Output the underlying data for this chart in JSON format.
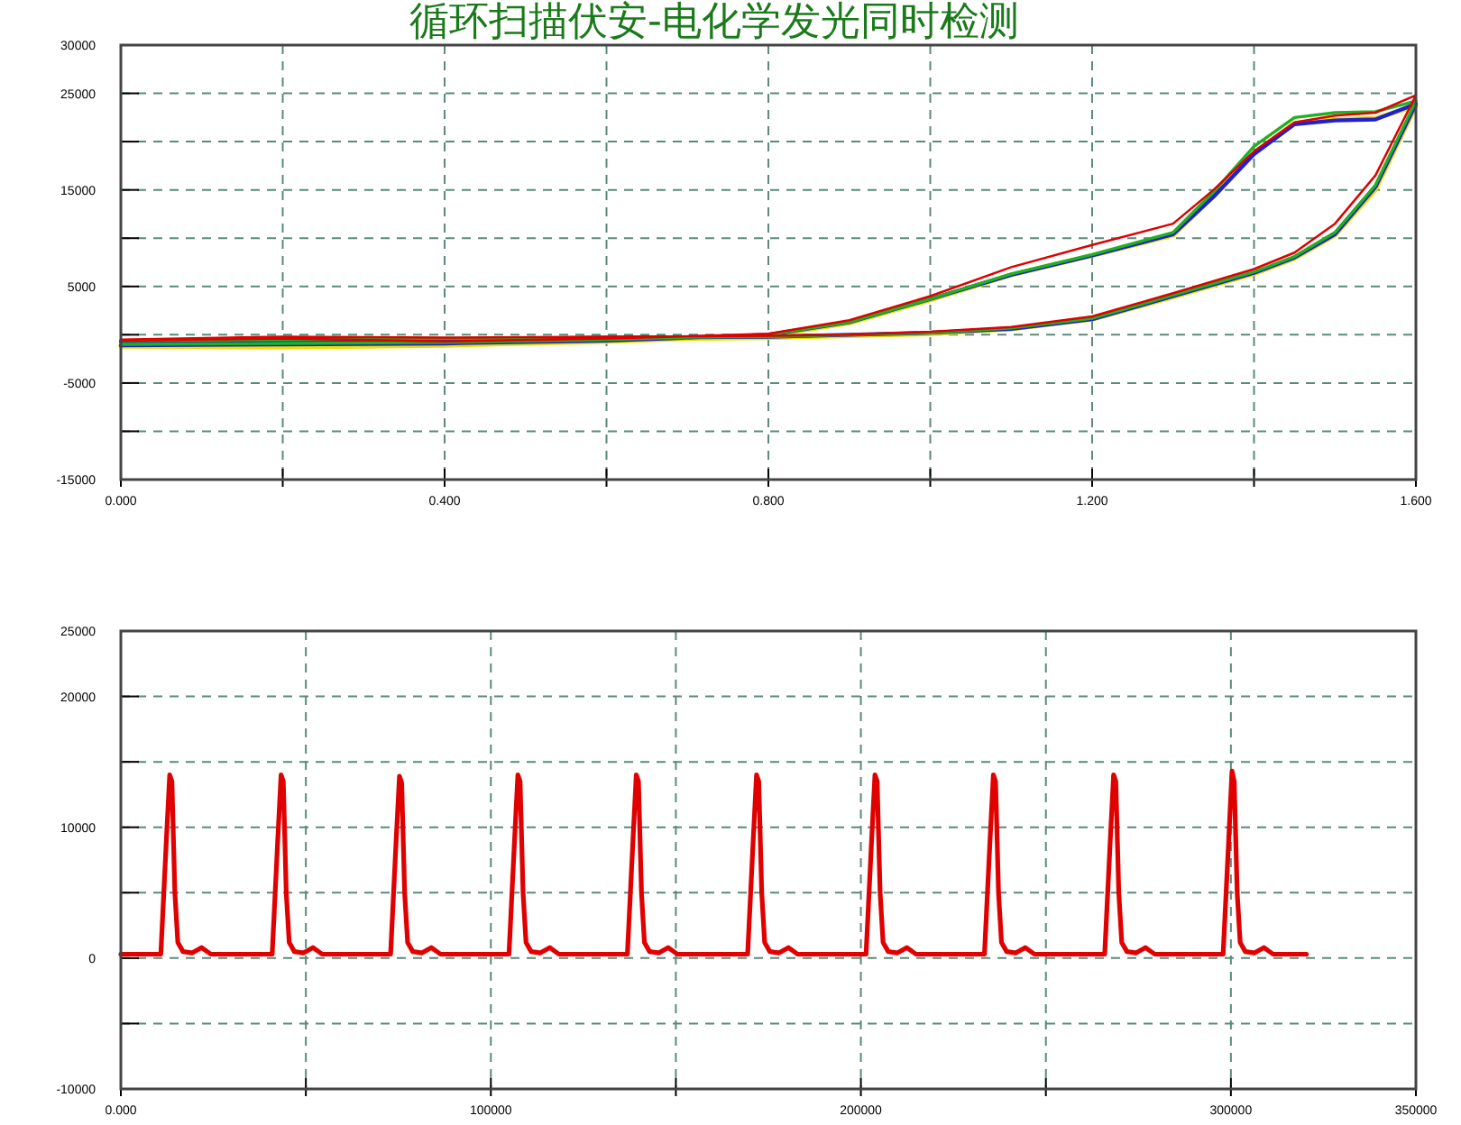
{
  "chart_data": [
    {
      "type": "line",
      "title": "循环扫描伏安-电化学发光同时检测",
      "marker": "none",
      "line_style": "solid",
      "grid": true,
      "xlim": [
        0,
        1.6
      ],
      "ylim": [
        -15000,
        30000
      ],
      "xticks": [
        {
          "value": 0,
          "label": "0.000"
        },
        {
          "value": 0.2,
          "label": null
        },
        {
          "value": 0.4,
          "label": "0.400"
        },
        {
          "value": 0.6,
          "label": null
        },
        {
          "value": 0.8,
          "label": "0.800"
        },
        {
          "value": 1.0,
          "label": null
        },
        {
          "value": 1.2,
          "label": "1.200"
        },
        {
          "value": 1.4,
          "label": null
        },
        {
          "value": 1.6,
          "label": "1.600"
        }
      ],
      "yticks": [
        {
          "value": -15000,
          "label": "-15000"
        },
        {
          "value": -10000,
          "label": null
        },
        {
          "value": -5000,
          "label": "-5000"
        },
        {
          "value": 0,
          "label": null
        },
        {
          "value": 5000,
          "label": "5000"
        },
        {
          "value": 10000,
          "label": null
        },
        {
          "value": 15000,
          "label": "15000"
        },
        {
          "value": 20000,
          "label": null
        },
        {
          "value": 25000,
          "label": "25000"
        },
        {
          "value": 30000,
          "label": "30000"
        }
      ],
      "series": [
        {
          "color": "#f0e000",
          "x": [
            0,
            0.2,
            0.4,
            0.6,
            0.8,
            0.9,
            1.0,
            1.1,
            1.2,
            1.3,
            1.35,
            1.4,
            1.45,
            1.5,
            1.55,
            1.6,
            1.55,
            1.5,
            1.45,
            1.4,
            1.3,
            1.2,
            1.1,
            1.0,
            0.9,
            0.8,
            0.6,
            0.4,
            0.2,
            0
          ],
          "values": [
            -1200,
            -1300,
            -1100,
            -700,
            -100,
            1200,
            3600,
            6200,
            8200,
            10300,
            14300,
            18800,
            21900,
            22300,
            22400,
            23700,
            15000,
            10300,
            7900,
            6300,
            3900,
            1600,
            600,
            100,
            -100,
            -300,
            -500,
            -800,
            -1000,
            -1100
          ]
        },
        {
          "color": "#2020d0",
          "x": [
            0,
            0.2,
            0.4,
            0.6,
            0.8,
            0.9,
            1.0,
            1.1,
            1.2,
            1.3,
            1.35,
            1.4,
            1.45,
            1.5,
            1.55,
            1.6,
            1.55,
            1.5,
            1.45,
            1.4,
            1.3,
            1.2,
            1.1,
            1.0,
            0.9,
            0.8,
            0.6,
            0.4,
            0.2,
            0
          ],
          "values": [
            -1100,
            -1000,
            -900,
            -600,
            0,
            1300,
            3700,
            6200,
            8200,
            10400,
            14300,
            18700,
            21800,
            22200,
            22300,
            23900,
            15300,
            10400,
            8000,
            6400,
            4000,
            1600,
            600,
            200,
            0,
            -200,
            -300,
            -500,
            -600,
            -700
          ]
        },
        {
          "color": "#20b020",
          "x": [
            0,
            0.2,
            0.4,
            0.6,
            0.8,
            0.9,
            1.0,
            1.1,
            1.2,
            1.3,
            1.35,
            1.4,
            1.45,
            1.5,
            1.55,
            1.6,
            1.55,
            1.5,
            1.45,
            1.4,
            1.3,
            1.2,
            1.1,
            1.0,
            0.9,
            0.8,
            0.6,
            0.4,
            0.2,
            0
          ],
          "values": [
            -1000,
            -900,
            -800,
            -500,
            0,
            1300,
            3700,
            6300,
            8300,
            10600,
            14800,
            19500,
            22500,
            23000,
            23100,
            24200,
            15500,
            10600,
            8100,
            6500,
            4100,
            1700,
            700,
            200,
            0,
            -200,
            -300,
            -400,
            -500,
            -600
          ]
        },
        {
          "color": "#e00000",
          "x": [
            0,
            0.2,
            0.4,
            0.6,
            0.8,
            0.9,
            1.0,
            1.1,
            1.2,
            1.3,
            1.35,
            1.4,
            1.45,
            1.5,
            1.55,
            1.6,
            1.55,
            1.5,
            1.45,
            1.4,
            1.3,
            1.2,
            1.1,
            1.0,
            0.9,
            0.8,
            0.6,
            0.4,
            0.2,
            0
          ],
          "values": [
            -600,
            -400,
            -700,
            -400,
            100,
            1500,
            4000,
            7000,
            9300,
            11500,
            15000,
            19000,
            22000,
            22700,
            23000,
            24800,
            16500,
            11500,
            8500,
            6800,
            4300,
            1900,
            800,
            300,
            0,
            -100,
            -200,
            -300,
            -200,
            -500
          ]
        }
      ]
    },
    {
      "type": "line",
      "marker": "none",
      "line_style": "solid",
      "grid": true,
      "xlim": [
        0,
        350000
      ],
      "ylim": [
        -10000,
        25000
      ],
      "xticks": [
        {
          "value": 0,
          "label": "0.000"
        },
        {
          "value": 50000,
          "label": null
        },
        {
          "value": 100000,
          "label": "100000"
        },
        {
          "value": 150000,
          "label": null
        },
        {
          "value": 200000,
          "label": "200000"
        },
        {
          "value": 250000,
          "label": null
        },
        {
          "value": 300000,
          "label": "300000"
        },
        {
          "value": 350000,
          "label": "350000"
        }
      ],
      "yticks": [
        {
          "value": -10000,
          "label": "-10000"
        },
        {
          "value": -5000,
          "label": null
        },
        {
          "value": 0,
          "label": "0"
        },
        {
          "value": 5000,
          "label": null
        },
        {
          "value": 10000,
          "label": "10000"
        },
        {
          "value": 15000,
          "label": null
        },
        {
          "value": 20000,
          "label": "20000"
        },
        {
          "value": 25000,
          "label": "25000"
        }
      ],
      "series": [
        {
          "color": "#e00000",
          "x": [
            0,
            10800,
            12300,
            13200,
            13800,
            14600,
            15400,
            16800,
            19300,
            21800,
            24300,
            40900,
            42400,
            43300,
            43900,
            44700,
            45500,
            46900,
            49400,
            51900,
            54400,
            72900,
            74400,
            75300,
            75900,
            76700,
            77500,
            78900,
            81400,
            83900,
            86400,
            104900,
            106400,
            107300,
            107900,
            108700,
            109500,
            110900,
            113400,
            115900,
            118400,
            136900,
            138400,
            139300,
            139900,
            140700,
            141500,
            142900,
            145400,
            147900,
            150400,
            169400,
            170900,
            171800,
            172400,
            173200,
            174000,
            175400,
            177900,
            180400,
            182900,
            201400,
            202900,
            203800,
            204400,
            205200,
            206000,
            207400,
            209900,
            212400,
            214900,
            233400,
            234900,
            235800,
            236400,
            237200,
            238000,
            239400,
            241900,
            244400,
            246900,
            265900,
            267400,
            268300,
            268900,
            269700,
            270500,
            271900,
            274400,
            276900,
            279400,
            297900,
            299400,
            300300,
            300900,
            301700,
            302500,
            303900,
            306400,
            308900,
            311400,
            320400
          ],
          "values": [
            300,
            300,
            9000,
            14000,
            13500,
            5000,
            1200,
            500,
            400,
            800,
            300,
            300,
            9000,
            14000,
            13500,
            5000,
            1200,
            500,
            400,
            800,
            300,
            300,
            9000,
            13900,
            13400,
            5000,
            1200,
            500,
            400,
            800,
            300,
            300,
            9000,
            14000,
            13500,
            5000,
            1200,
            500,
            400,
            800,
            300,
            300,
            9000,
            14000,
            13500,
            5000,
            1200,
            500,
            400,
            800,
            300,
            300,
            9000,
            14000,
            13500,
            5000,
            1200,
            500,
            400,
            800,
            300,
            300,
            9000,
            14000,
            13500,
            5000,
            1200,
            500,
            400,
            800,
            300,
            300,
            9000,
            14000,
            13500,
            5000,
            1200,
            500,
            400,
            800,
            300,
            300,
            9000,
            14000,
            13500,
            5000,
            1200,
            500,
            400,
            800,
            300,
            300,
            9000,
            14300,
            13500,
            5000,
            1200,
            500,
            400,
            800,
            300,
            300
          ]
        }
      ]
    }
  ]
}
